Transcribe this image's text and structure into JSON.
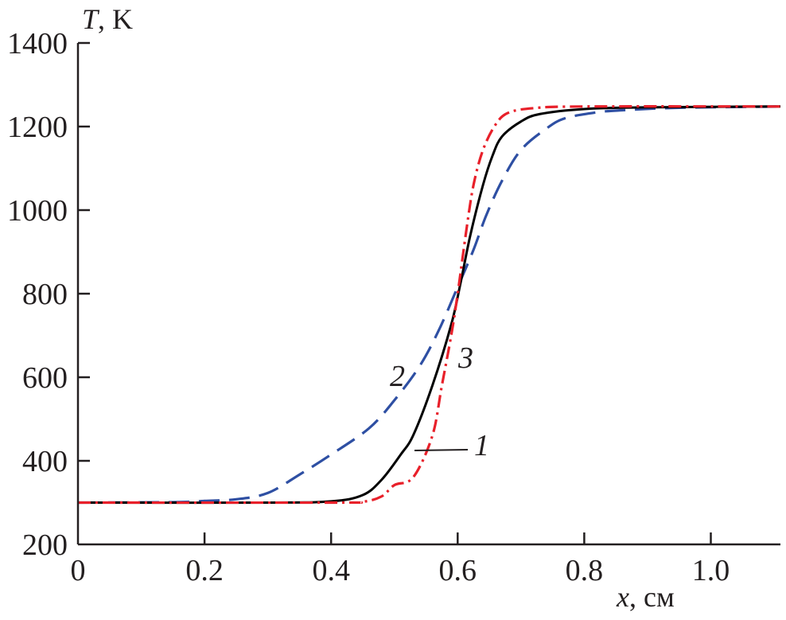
{
  "chart_data": {
    "type": "line",
    "ylabel": {
      "var": "T",
      "unit": ", K"
    },
    "xlabel": {
      "var": "x",
      "unit": ", см"
    },
    "xlim": [
      0,
      1.11
    ],
    "ylim": [
      200,
      1400
    ],
    "xticks": [
      0,
      0.2,
      0.4,
      0.6,
      0.8,
      1.0
    ],
    "xtick_labels": [
      "0",
      "0.2",
      "0.4",
      "0.6",
      "0.8",
      "1.0"
    ],
    "yticks": [
      200,
      400,
      600,
      800,
      1000,
      1200,
      1400
    ],
    "ytick_labels": [
      "200",
      "400",
      "600",
      "800",
      "1000",
      "1200",
      "1400"
    ],
    "grid": false,
    "series": [
      {
        "label": "1",
        "color": "#000000",
        "style": "solid",
        "x": [
          0,
          0.3,
          0.4,
          0.45,
          0.48,
          0.51,
          0.53,
          0.56,
          0.59,
          0.605,
          0.62,
          0.64,
          0.655,
          0.67,
          0.7,
          0.73,
          0.8,
          0.9,
          1.11
        ],
        "y": [
          300,
          300,
          303,
          318,
          355,
          415,
          462,
          580,
          727,
          829,
          940,
          1060,
          1130,
          1176,
          1212,
          1230,
          1242,
          1246,
          1248
        ]
      },
      {
        "label": "2",
        "color": "#2e4fa3",
        "style": "dashed",
        "x": [
          0,
          0.15,
          0.2,
          0.25,
          0.3,
          0.35,
          0.4,
          0.46,
          0.5,
          0.54,
          0.57,
          0.6,
          0.625,
          0.645,
          0.67,
          0.7,
          0.74,
          0.77,
          0.82,
          0.86,
          0.95,
          1.11
        ],
        "y": [
          300,
          301,
          304,
          308,
          323,
          367,
          415,
          478,
          545,
          627,
          712,
          816,
          905,
          987,
          1070,
          1144,
          1195,
          1220,
          1234,
          1239,
          1245,
          1248
        ]
      },
      {
        "label": "3",
        "color": "#e8202a",
        "style": "dashdot",
        "x": [
          0,
          0.4,
          0.45,
          0.48,
          0.5,
          0.53,
          0.56,
          0.575,
          0.59,
          0.6,
          0.614,
          0.625,
          0.64,
          0.66,
          0.68,
          0.72,
          0.8,
          1.11
        ],
        "y": [
          300,
          300,
          302,
          315,
          342,
          361,
          460,
          580,
          702,
          800,
          955,
          1060,
          1144,
          1205,
          1233,
          1244,
          1248,
          1248
        ]
      }
    ]
  }
}
